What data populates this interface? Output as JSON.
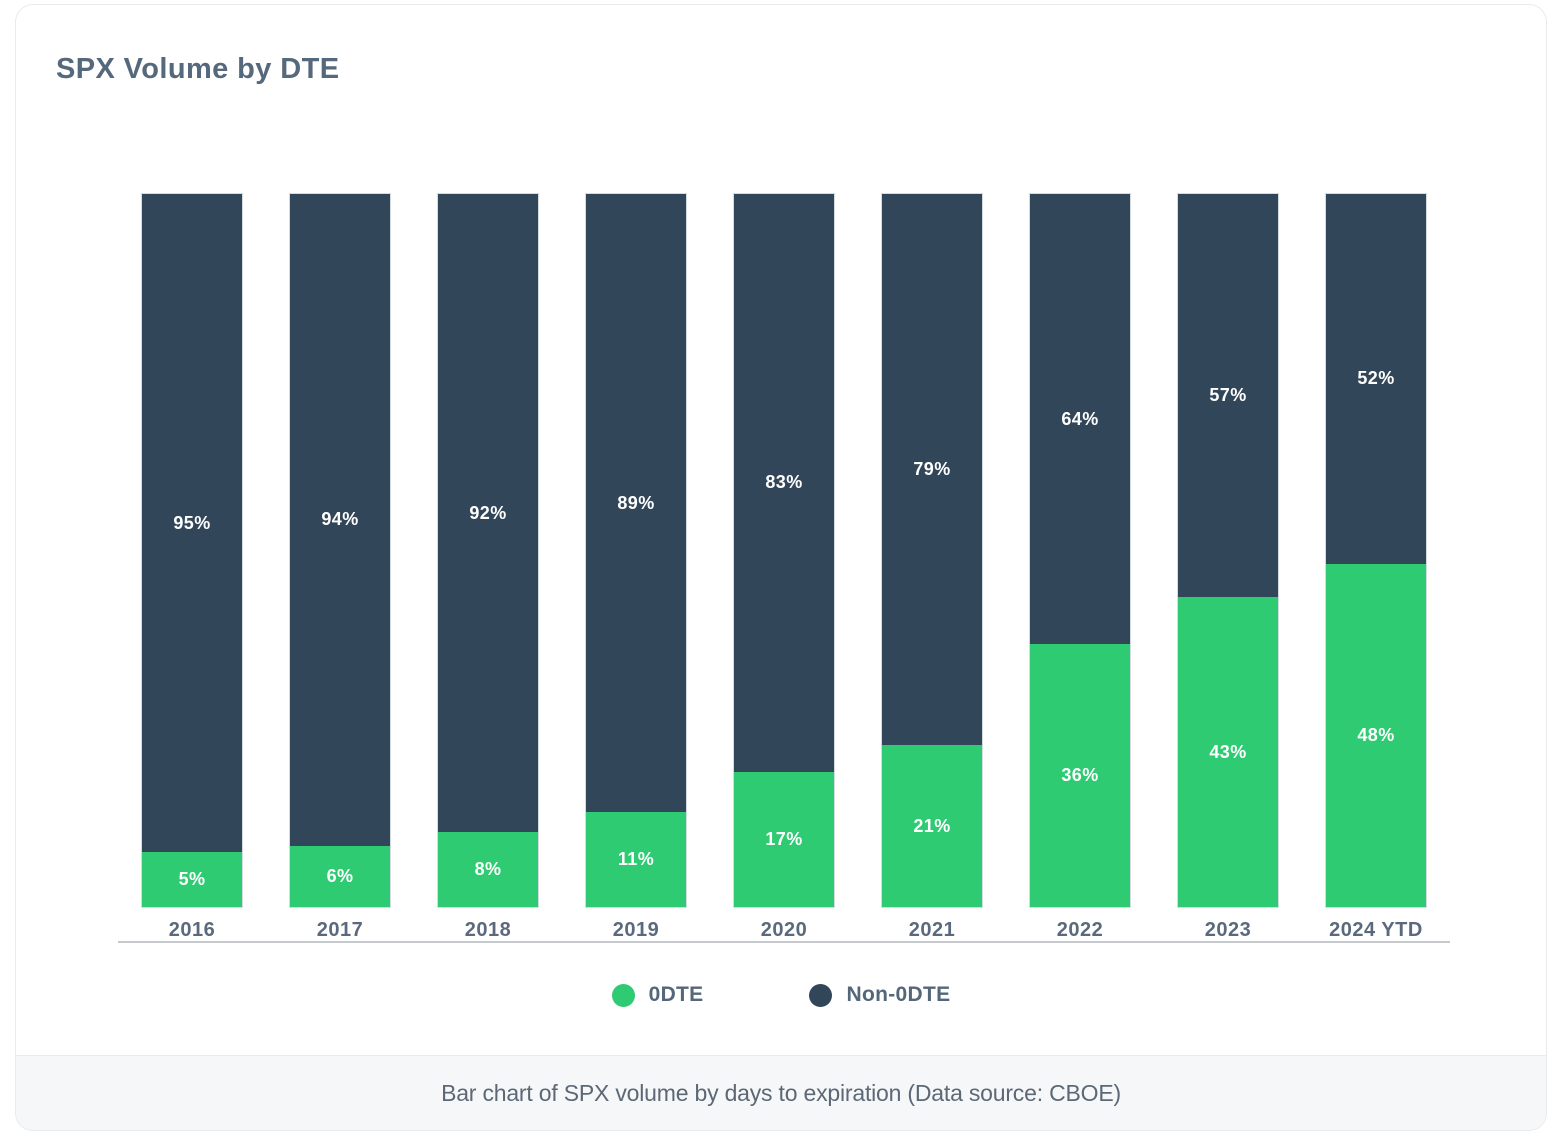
{
  "card": {
    "title": "SPX Volume by DTE",
    "caption": "Bar chart of SPX volume by days to expiration (Data source: CBOE)"
  },
  "legend": {
    "items": [
      {
        "label": "0DTE",
        "color": "#2fcb73"
      },
      {
        "label": "Non-0DTE",
        "color": "#32465a"
      }
    ]
  },
  "chart_data": {
    "type": "bar",
    "stacked": true,
    "title": "SPX Volume by DTE",
    "categories": [
      "2016",
      "2017",
      "2018",
      "2019",
      "2020",
      "2021",
      "2022",
      "2023",
      "2024 YTD"
    ],
    "series": [
      {
        "name": "0DTE",
        "color": "#2fcb73",
        "values": [
          5,
          6,
          8,
          11,
          17,
          21,
          36,
          43,
          48
        ]
      },
      {
        "name": "Non-0DTE",
        "color": "#32465a",
        "values": [
          95,
          94,
          92,
          89,
          83,
          79,
          64,
          57,
          52
        ]
      }
    ],
    "value_format": "percent",
    "data_labels": "inside-center-white",
    "ylim": [
      0,
      100
    ],
    "grid": false,
    "x_axis_line_color": "#c6cacf",
    "legend_position": "bottom"
  }
}
